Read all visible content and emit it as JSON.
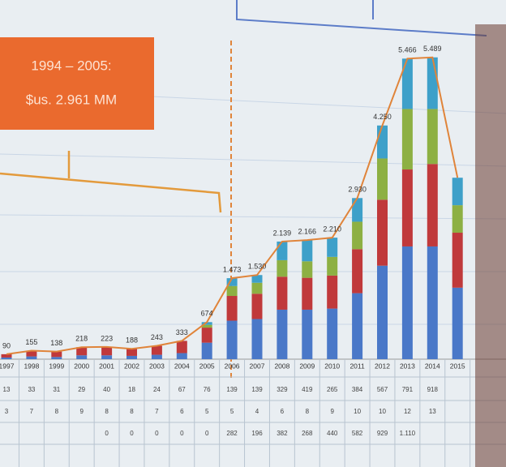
{
  "chart_data": {
    "type": "bar",
    "stacked": true,
    "annotation": [
      "1994 – 2005:",
      "$us. 2.961 MM"
    ],
    "categories": [
      "1997",
      "1998",
      "1999",
      "2000",
      "2001",
      "2002",
      "2003",
      "2004",
      "2005",
      "2006",
      "2007",
      "2008",
      "2009",
      "2010",
      "2011",
      "2012",
      "2013",
      "2014",
      "2015"
    ],
    "ylim": [
      0,
      5500
    ],
    "series": [
      {
        "color": "#4a78c8",
        "values": [
          30,
          50,
          40,
          70,
          70,
          60,
          80,
          110,
          300,
          700,
          730,
          900,
          900,
          920,
          1200,
          1700,
          2050,
          2050,
          1300
        ]
      },
      {
        "color": "#c0393b",
        "values": [
          60,
          105,
          98,
          148,
          153,
          128,
          163,
          223,
          274,
          450,
          460,
          600,
          580,
          600,
          800,
          1200,
          1400,
          1500,
          1000
        ]
      },
      {
        "color": "#8db043",
        "values": [
          0,
          0,
          0,
          0,
          0,
          0,
          0,
          0,
          50,
          180,
          200,
          300,
          300,
          340,
          500,
          750,
          1100,
          1000,
          500
        ]
      },
      {
        "color": "#3ea0c9",
        "values": [
          0,
          0,
          0,
          0,
          0,
          0,
          0,
          0,
          50,
          143,
          140,
          339,
          386,
          350,
          430,
          600,
          916,
          939,
          500
        ]
      }
    ],
    "total": {
      "color": "#e0843a",
      "values": [
        90,
        155,
        138,
        218,
        223,
        188,
        243,
        333,
        674,
        1473,
        1530,
        2139,
        2166,
        2210,
        2930,
        4250,
        5466,
        5489,
        3300
      ],
      "value_labels": [
        "90",
        "155",
        "138",
        "218",
        "223",
        "188",
        "243",
        "333",
        "674",
        "1.473",
        "1.530",
        "2.139",
        "2.166",
        "2.210",
        "2.930",
        "4.250",
        "5.466",
        "5.489",
        null
      ]
    },
    "table": {
      "rows": [
        [
          "13",
          "33",
          "31",
          "29",
          "40",
          "18",
          "24",
          "67",
          "76",
          "139",
          "139",
          "329",
          "419",
          "265",
          "384",
          "567",
          "791",
          "918",
          null
        ],
        [
          "3",
          "7",
          "8",
          "9",
          "8",
          "8",
          "7",
          "6",
          "5",
          "5",
          "4",
          "6",
          "8",
          "9",
          "10",
          "10",
          "12",
          "13",
          null
        ],
        [
          null,
          null,
          null,
          null,
          "0",
          "0",
          "0",
          "0",
          "0",
          "282",
          "196",
          "382",
          "268",
          "440",
          "582",
          "929",
          "1.110",
          null,
          null
        ]
      ]
    }
  }
}
